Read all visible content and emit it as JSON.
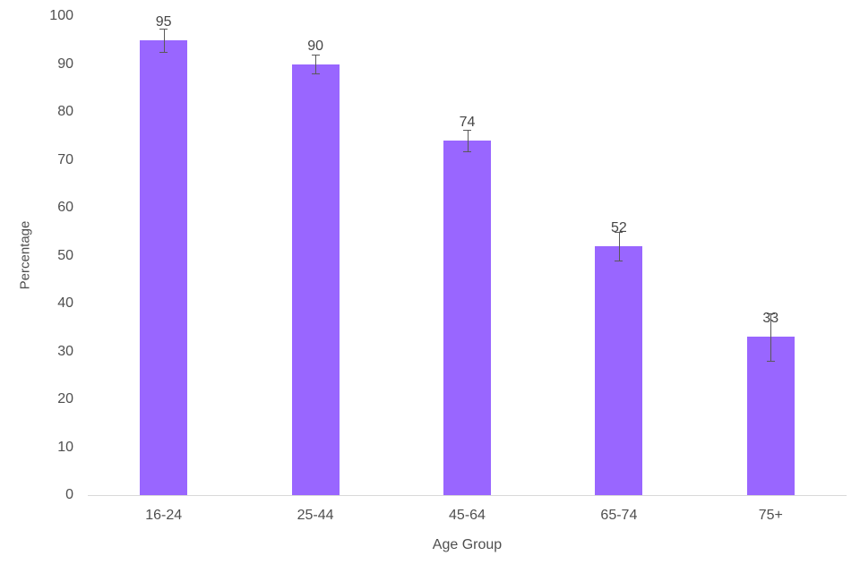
{
  "chart_data": {
    "type": "bar",
    "title": "",
    "categories": [
      "16-24",
      "25-44",
      "45-64",
      "65-74",
      "75+"
    ],
    "values": [
      95,
      90,
      74,
      52,
      33
    ],
    "data_labels": [
      "95",
      "90",
      "74",
      "52",
      "33"
    ],
    "errors": [
      2.4,
      1.9,
      2.2,
      3.0,
      4.9
    ],
    "xlabel": "Age Group",
    "ylabel": "Percentage",
    "ylim": [
      0,
      100
    ],
    "yticks": [
      0,
      10,
      20,
      30,
      40,
      50,
      60,
      70,
      80,
      90,
      100
    ],
    "grid": false,
    "legend": null,
    "colors": {
      "bar": "#9966ff",
      "error_bar": "#595959",
      "axis_line": "#d9d9d9",
      "tick_text": "#4f4f4f",
      "data_label_text": "#464646",
      "background": "#ffffff"
    }
  }
}
